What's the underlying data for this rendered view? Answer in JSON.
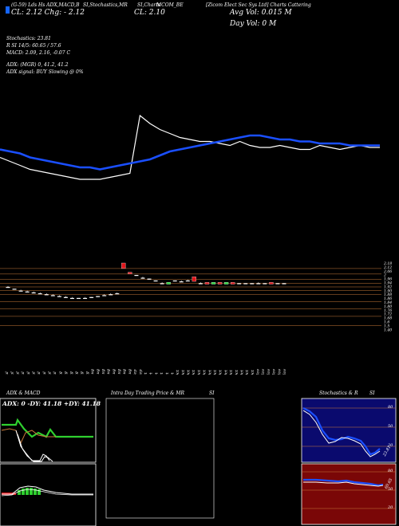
{
  "header": {
    "line1_left": "(G-59) Lds  Hs ADX,MACD,B",
    "line1_mid": "SI,Stochastics,MR",
    "line1_mid2": "SI,Charts",
    "line1_sym": "MCOM_BE",
    "line1_right": "[Zicom Elect Sec Sys Ltd] Charts Cattering",
    "cl_prefix": "CL: 2.12  Chg: - 2.12",
    "cl_main": "CL: 2.10",
    "avg_vol": "Avg Vol: 0.015  M",
    "day_vol": "Day Vol: 0   M",
    "stochastics": "Stochastics: 23.81",
    "rsi": "R          SI 14/5: 60.65 / 57.6",
    "macd": "MACD: 2.09, 2.16, -0.07 C",
    "adx": "ADX:                               (MGR) 0, 41.2, 41.2",
    "adx_signal": "ADX  signal:                                          BUY Slowing @ 0%"
  },
  "colors": {
    "bg": "#000000",
    "ema_blue": "#1a4fff",
    "sma_white": "#ffffff",
    "grid_orange": "#c87a3a",
    "candle_up": "#27d93b",
    "candle_down": "#e0161b",
    "adx_green": "#2fd02f",
    "stoch_panel_bg": "#0a0a6e",
    "rsi_panel_bg": "#7a0707"
  },
  "price_axis_labels": [
    "2.18",
    "2.12",
    "2.06",
    "2",
    "1.96",
    "1.94",
    "1.92",
    "1.90",
    "1.88",
    "1.86",
    "1.84",
    "1.80",
    "1.76",
    "1.72",
    "1.68",
    "1.6",
    "1.5",
    "1.40"
  ],
  "date_labels": [
    "20 Jul",
    "21 Jul",
    "22 Jul",
    "23 Jul",
    "24 Jul",
    "25 Jul",
    "26 Jul",
    "27 Jul",
    "28 Jul",
    "29 Jul",
    "1 Aug",
    "2 Aug",
    "4 Aug",
    "5 Aug",
    "6 Aug",
    "9 Aug",
    "10 Aug",
    "11 Aug",
    "12 Aug",
    "13 Aug",
    "14 Aug",
    "16 Aug",
    "21 Aug",
    "22 Aug",
    "24 Sep",
    "29 Sep",
    "1 Oct",
    "4 Oct",
    "5 Oct",
    "6 Oct",
    "7 Oct",
    "8 Oct",
    "11 Oct",
    "12 Oct",
    "13 Oct",
    "14 Oct",
    "15 Oct",
    "18 Oct",
    "19 Oct",
    "20 Oct",
    "21 Oct",
    "22 Oct",
    "25 Oct",
    "26 Oct",
    "27 Oct",
    "28 Oct",
    "29 Oct",
    "01 Nov",
    "02 Nov",
    "03 Nov",
    "04 Nov",
    "08 Nov",
    "09 Nov"
  ],
  "chart_data": {
    "type": "line",
    "title": "",
    "series": [
      {
        "values": [
          1.95,
          1.94,
          1.93,
          1.91,
          1.9,
          1.89,
          1.88,
          1.87,
          1.86,
          1.86,
          1.85,
          1.86,
          1.87,
          1.88,
          1.89,
          1.9,
          1.92,
          1.94,
          1.95,
          1.96,
          1.97,
          1.98,
          1.99,
          2.0,
          2.01,
          2.02,
          2.02,
          2.01,
          2.0,
          2.0,
          1.99,
          1.99,
          1.98,
          1.98,
          1.98,
          1.97,
          1.97,
          1.97,
          1.97
        ]
      },
      {
        "values": [
          1.91,
          1.89,
          1.87,
          1.85,
          1.84,
          1.83,
          1.82,
          1.81,
          1.8,
          1.8,
          1.8,
          1.81,
          1.82,
          1.83,
          2.12,
          2.08,
          2.05,
          2.03,
          2.01,
          2.0,
          1.99,
          1.99,
          1.98,
          1.97,
          1.99,
          1.97,
          1.96,
          1.96,
          1.97,
          1.96,
          1.95,
          1.95,
          1.97,
          1.96,
          1.95,
          1.96,
          1.97,
          1.96,
          1.96
        ]
      }
    ],
    "candles": [
      {
        "o": 1.92,
        "c": 1.92,
        "h": 1.93,
        "l": 1.92
      },
      {
        "o": 1.9,
        "c": 1.9,
        "h": 1.9,
        "l": 1.9
      },
      {
        "o": 1.88,
        "c": 1.88,
        "h": 1.89,
        "l": 1.88
      },
      {
        "o": 1.87,
        "c": 1.87,
        "h": 1.88,
        "l": 1.87
      },
      {
        "o": 1.86,
        "c": 1.86,
        "h": 1.87,
        "l": 1.86
      },
      {
        "o": 1.85,
        "c": 1.85,
        "h": 1.86,
        "l": 1.85
      },
      {
        "o": 1.84,
        "c": 1.84,
        "h": 1.85,
        "l": 1.84
      },
      {
        "o": 1.83,
        "c": 1.83,
        "h": 1.84,
        "l": 1.83
      },
      {
        "o": 1.82,
        "c": 1.82,
        "h": 1.83,
        "l": 1.82
      },
      {
        "o": 1.81,
        "c": 1.81,
        "h": 1.82,
        "l": 1.8
      },
      {
        "o": 1.8,
        "c": 1.8,
        "h": 1.81,
        "l": 1.8
      },
      {
        "o": 1.8,
        "c": 1.79,
        "h": 1.8,
        "l": 1.79
      },
      {
        "o": 1.8,
        "c": 1.8,
        "h": 1.81,
        "l": 1.8
      },
      {
        "o": 1.8,
        "c": 1.81,
        "h": 1.81,
        "l": 1.8
      },
      {
        "o": 1.81,
        "c": 1.82,
        "h": 1.82,
        "l": 1.81
      },
      {
        "o": 1.83,
        "c": 1.83,
        "h": 1.84,
        "l": 1.83
      },
      {
        "o": 1.84,
        "c": 1.84,
        "h": 1.85,
        "l": 1.84
      },
      {
        "o": 1.85,
        "c": 1.85,
        "h": 1.86,
        "l": 1.85
      },
      {
        "o": 2.18,
        "c": 2.12,
        "h": 2.18,
        "l": 2.12
      },
      {
        "o": 2.08,
        "c": 2.06,
        "h": 2.08,
        "l": 2.06
      },
      {
        "o": 2.05,
        "c": 2.04,
        "h": 2.05,
        "l": 2.04
      },
      {
        "o": 2.02,
        "c": 2.02,
        "h": 2.03,
        "l": 2.02
      },
      {
        "o": 2.01,
        "c": 2.0,
        "h": 2.01,
        "l": 2.0
      },
      {
        "o": 1.99,
        "c": 1.98,
        "h": 1.99,
        "l": 1.98
      },
      {
        "o": 1.96,
        "c": 1.96,
        "h": 1.97,
        "l": 1.96
      },
      {
        "o": 1.95,
        "c": 1.97,
        "h": 1.97,
        "l": 1.95
      },
      {
        "o": 1.99,
        "c": 1.98,
        "h": 1.99,
        "l": 1.98
      },
      {
        "o": 1.98,
        "c": 1.98,
        "h": 1.99,
        "l": 1.98
      },
      {
        "o": 1.99,
        "c": 1.99,
        "h": 2.0,
        "l": 1.99
      },
      {
        "o": 2.03,
        "c": 1.98,
        "h": 2.03,
        "l": 1.98
      },
      {
        "o": 1.96,
        "c": 1.96,
        "h": 1.97,
        "l": 1.95
      },
      {
        "o": 1.97,
        "c": 1.95,
        "h": 1.97,
        "l": 1.95
      },
      {
        "o": 1.95,
        "c": 1.97,
        "h": 1.97,
        "l": 1.95
      },
      {
        "o": 1.97,
        "c": 1.95,
        "h": 1.97,
        "l": 1.95
      },
      {
        "o": 1.95,
        "c": 1.97,
        "h": 1.97,
        "l": 1.95
      },
      {
        "o": 1.97,
        "c": 1.95,
        "h": 1.97,
        "l": 1.95
      },
      {
        "o": 1.96,
        "c": 1.96,
        "h": 1.96,
        "l": 1.95
      },
      {
        "o": 1.96,
        "c": 1.96,
        "h": 1.96,
        "l": 1.95
      },
      {
        "o": 1.96,
        "c": 1.96,
        "h": 1.96,
        "l": 1.95
      },
      {
        "o": 1.96,
        "c": 1.96,
        "h": 1.97,
        "l": 1.95
      },
      {
        "o": 1.96,
        "c": 1.95,
        "h": 1.96,
        "l": 1.95
      },
      {
        "o": 1.97,
        "c": 1.95,
        "h": 1.97,
        "l": 1.95
      },
      {
        "o": 1.96,
        "c": 1.96,
        "h": 1.96,
        "l": 1.95
      },
      {
        "o": 1.96,
        "c": 1.95,
        "h": 1.96,
        "l": 1.95
      }
    ],
    "ylim": [
      1.4,
      2.18
    ],
    "grid": true
  },
  "panels": {
    "adx_macd_title": "ADX  & MACD",
    "adx_readout": "ADX: 0   -DY: 41.18   +DY: 41.18",
    "intraday_title": "Intra  Day Trading Price  & MR",
    "intraday_title2": "SI",
    "stoch_title": "Stochastics & R",
    "stoch_title2": "SI",
    "stoch_ticks": [
      "80",
      "50",
      "20"
    ],
    "stoch_value": "23.81",
    "rsi_ticks": [
      "80",
      "50",
      "20"
    ],
    "rsi_value": "60.65"
  }
}
